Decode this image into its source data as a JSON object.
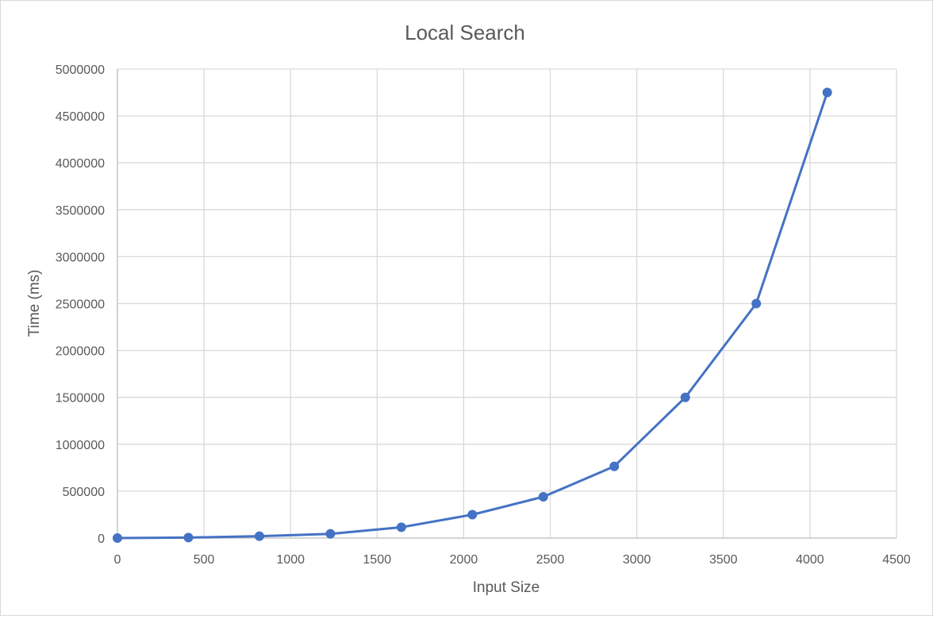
{
  "chart_data": {
    "type": "scatter",
    "title": "Local Search",
    "xlabel": "Input Size",
    "ylabel": "Time (ms)",
    "xlim": [
      0,
      4500
    ],
    "ylim": [
      0,
      5000000
    ],
    "x_ticks": [
      0,
      500,
      1000,
      1500,
      2000,
      2500,
      3000,
      3500,
      4000,
      4500
    ],
    "y_ticks": [
      0,
      500000,
      1000000,
      1500000,
      2000000,
      2500000,
      3000000,
      3500000,
      4000000,
      4500000,
      5000000
    ],
    "x_tick_labels": [
      "0",
      "500",
      "1000",
      "1500",
      "2000",
      "2500",
      "3000",
      "3500",
      "4000",
      "4500"
    ],
    "y_tick_labels": [
      "0",
      "500000",
      "1000000",
      "1500000",
      "2000000",
      "2500000",
      "3000000",
      "3500000",
      "4000000",
      "4500000",
      "5000000"
    ],
    "grid": true,
    "legend": "none",
    "color": "#4472c4",
    "series": [
      {
        "x": [
          0,
          410,
          820,
          1230,
          1640,
          2050,
          2460,
          2870,
          3280,
          3690,
          4100
        ],
        "y": [
          0,
          5000,
          20000,
          45000,
          115000,
          250000,
          440000,
          765000,
          1500000,
          2500000,
          4750000
        ]
      }
    ]
  }
}
